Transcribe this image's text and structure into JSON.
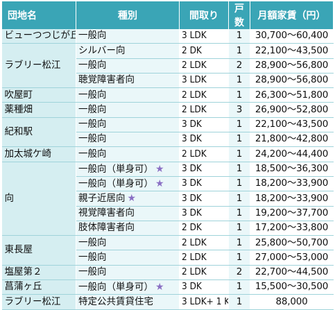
{
  "header": {
    "col_name": "団地名",
    "col_kind": "種別",
    "col_plan": "間取り",
    "col_count": "戸数",
    "col_rent": "月額家賃（円）"
  },
  "star_glyph": "★",
  "groups": [
    {
      "name": "ビューつつじが丘",
      "rows": [
        {
          "kind": "一般向",
          "star": false,
          "plan": "3 LDK",
          "count": "1",
          "rent": "30,700〜60,400"
        }
      ]
    },
    {
      "name": "ラブリー松江",
      "rows": [
        {
          "kind": "シルバー向",
          "star": false,
          "plan": "2 DK",
          "count": "1",
          "rent": "22,100〜43,500"
        },
        {
          "kind": "一般向",
          "star": false,
          "plan": "2 LDK",
          "count": "2",
          "rent": "28,900〜56,800"
        },
        {
          "kind": "聴覚障害者向",
          "star": false,
          "plan": "3 LDK",
          "count": "1",
          "rent": "28,900〜56,800"
        }
      ]
    },
    {
      "name": "吹屋町",
      "rows": [
        {
          "kind": "一般向",
          "star": false,
          "plan": "2 LDK",
          "count": "1",
          "rent": "26,300〜51,800"
        }
      ]
    },
    {
      "name": "薬種畑",
      "rows": [
        {
          "kind": "一般向",
          "star": false,
          "plan": "2 LDK",
          "count": "3",
          "rent": "26,900〜52,800"
        }
      ]
    },
    {
      "name": "紀和駅",
      "rows": [
        {
          "kind": "一般向",
          "star": false,
          "plan": "3 DK",
          "count": "1",
          "rent": "22,100〜43,500"
        },
        {
          "kind": "一般向",
          "star": false,
          "plan": "3 DK",
          "count": "1",
          "rent": "21,800〜42,800"
        }
      ]
    },
    {
      "name": "加太城ケ崎",
      "rows": [
        {
          "kind": "一般向",
          "star": false,
          "plan": "2 LDK",
          "count": "1",
          "rent": "24,200〜44,400"
        }
      ]
    },
    {
      "name": "向",
      "rows": [
        {
          "kind": "一般向（単身可）",
          "star": true,
          "plan": "3 DK",
          "count": "1",
          "rent": "18,500〜36,300"
        },
        {
          "kind": "一般向（単身可）",
          "star": true,
          "plan": "3 DK",
          "count": "1",
          "rent": "18,200〜33,900"
        },
        {
          "kind": "親子近居向",
          "star": true,
          "plan": "3 DK",
          "count": "1",
          "rent": "18,200〜33,900"
        },
        {
          "kind": "視覚障害者向",
          "star": false,
          "plan": "3 DK",
          "count": "1",
          "rent": "19,200〜37,700"
        },
        {
          "kind": "肢体障害者向",
          "star": false,
          "plan": "2 DK",
          "count": "1",
          "rent": "17,200〜33,800"
        }
      ]
    },
    {
      "name": "東長屋",
      "rows": [
        {
          "kind": "一般向",
          "star": false,
          "plan": "2 LDK",
          "count": "1",
          "rent": "25,800〜50,700"
        },
        {
          "kind": "一般向",
          "star": false,
          "plan": "2 LDK",
          "count": "1",
          "rent": "27,000〜53,000"
        }
      ]
    },
    {
      "name": "塩屋第２",
      "rows": [
        {
          "kind": "一般向",
          "star": false,
          "plan": "2 LDK",
          "count": "2",
          "rent": "22,700〜44,500"
        }
      ]
    },
    {
      "name": "菖蒲ヶ丘",
      "rows": [
        {
          "kind": "一般向（単身可）",
          "star": true,
          "plan": "3 DK",
          "count": "1",
          "rent": "15,500〜30,500"
        }
      ]
    },
    {
      "name": "ラブリー松江",
      "rows": [
        {
          "kind": "特定公共賃貸住宅",
          "star": false,
          "plan": "3 LDK+ 1 K",
          "count": "1",
          "rent": "88,000"
        }
      ]
    }
  ]
}
